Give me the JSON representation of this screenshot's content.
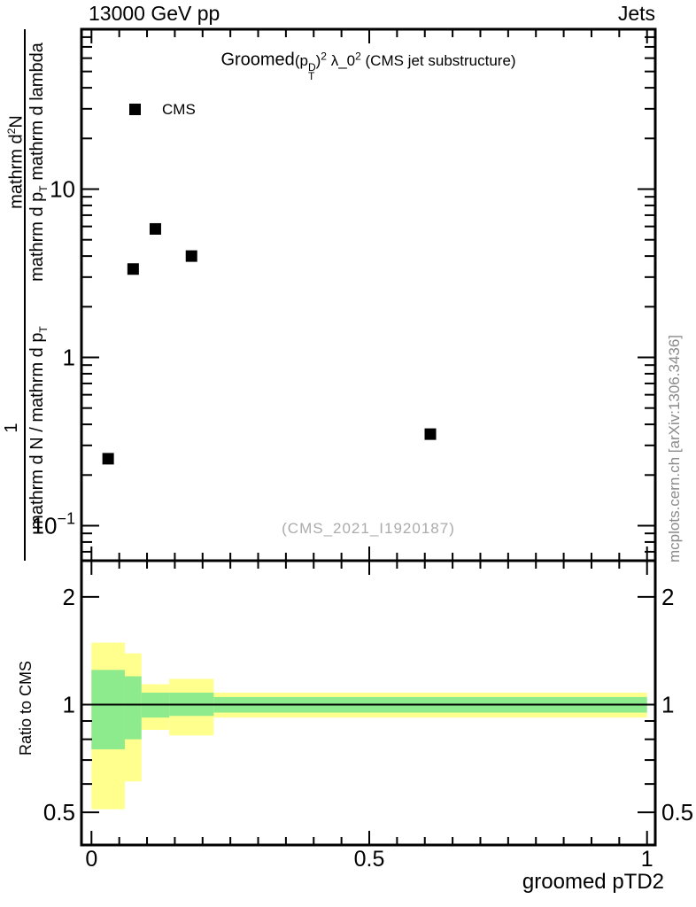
{
  "header": {
    "left": "13000 GeV pp",
    "right": "Jets"
  },
  "title": {
    "prefix": "Groomed",
    "p_open": "(p",
    "p_sup": "D",
    "p_sub": "T",
    "p_close": ")",
    "sup1": "2",
    "lambda": " λ_0",
    "sup2": "2",
    "suffix": " (CMS jet substructure)"
  },
  "legend": {
    "label": "CMS",
    "marker": "filled-square",
    "marker_color": "#000000"
  },
  "watermark": "(CMS_2021_I1920187)",
  "sidenote": "mcplots.cern.ch [arXiv:1306.3436]",
  "ylabel": {
    "num1": "1",
    "num2_a": "mathrm d",
    "num2_sup": "2",
    "num2_b": "N",
    "den1_a": "mathrm d N / mathrm d p",
    "den1_sub": "T",
    "den2_a": "mathrm d p",
    "den2_sub": "T",
    "den2_b": " mathrm d lambda"
  },
  "chart_data": {
    "type": "scatter",
    "title": "Groomed (p_T^D)^2 lambda_0^2 (CMS jet substructure)",
    "xlabel": "groomed pTD2",
    "x_range": [
      0,
      1
    ],
    "x_minor_step": 0.05,
    "x_major_ticks": [
      {
        "value": 0,
        "label": "0"
      },
      {
        "value": 0.5,
        "label": "0.5"
      },
      {
        "value": 1,
        "label": "1"
      }
    ],
    "grid": false,
    "legend_position": "top-left-inside",
    "panels": {
      "main": {
        "y_scale": "log",
        "y_range": [
          0.062,
          89
        ],
        "y_major_ticks": [
          {
            "value": 10,
            "label": "10"
          },
          {
            "value": 1,
            "label": "1"
          },
          {
            "value": 0.1,
            "label_base": "10",
            "label_exp": "-1"
          }
        ],
        "series": [
          {
            "name": "CMS",
            "marker": "filled-square",
            "color": "#000000",
            "points": [
              {
                "x": 0.03,
                "y": 0.25
              },
              {
                "x": 0.075,
                "y": 3.35
              },
              {
                "x": 0.115,
                "y": 5.8
              },
              {
                "x": 0.18,
                "y": 4.0
              },
              {
                "x": 0.61,
                "y": 0.35
              }
            ]
          }
        ]
      },
      "ratio": {
        "ylabel": "Ratio to CMS",
        "y_scale": "log",
        "y_range": [
          0.405,
          2.52
        ],
        "y_major_ticks": [
          {
            "value": 2,
            "label": "2"
          },
          {
            "value": 1,
            "label": "1"
          },
          {
            "value": 0.5,
            "label": "0.5"
          }
        ],
        "reference_line_y": 1,
        "band_colors": {
          "outer": "#ffff8d",
          "inner": "#8deb8d"
        },
        "bands": [
          {
            "x0": 0.0,
            "x1": 0.06,
            "outer": [
              0.51,
              1.49
            ],
            "inner": [
              0.75,
              1.25
            ]
          },
          {
            "x0": 0.06,
            "x1": 0.09,
            "outer": [
              0.61,
              1.39
            ],
            "inner": [
              0.8,
              1.2
            ]
          },
          {
            "x0": 0.09,
            "x1": 0.14,
            "outer": [
              0.85,
              1.14
            ],
            "inner": [
              0.92,
              1.08
            ]
          },
          {
            "x0": 0.14,
            "x1": 0.22,
            "outer": [
              0.82,
              1.18
            ],
            "inner": [
              0.93,
              1.08
            ]
          },
          {
            "x0": 0.22,
            "x1": 1.0,
            "outer": [
              0.92,
              1.08
            ],
            "inner": [
              0.95,
              1.05
            ]
          }
        ]
      }
    }
  }
}
